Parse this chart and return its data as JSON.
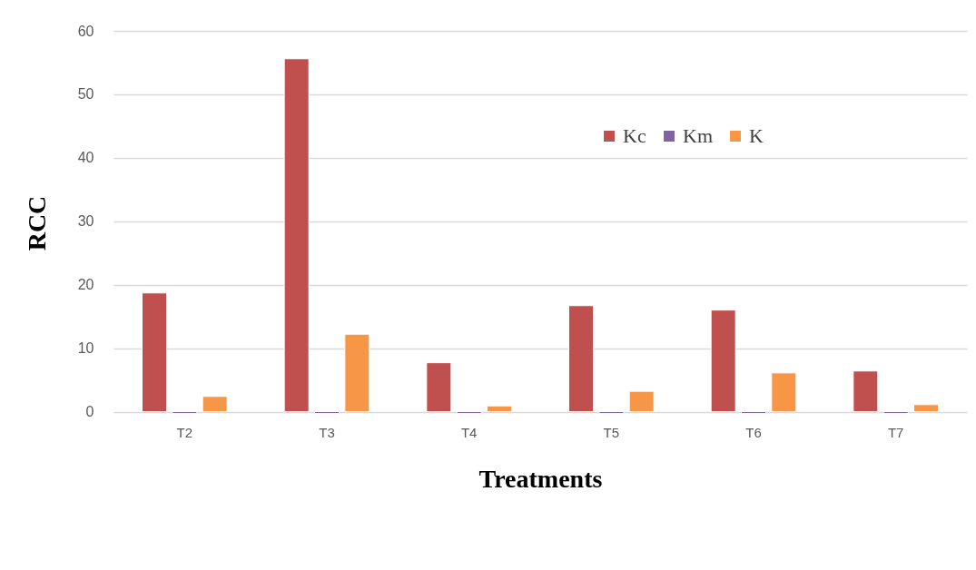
{
  "chart_data": {
    "type": "bar",
    "xlabel": "Treatments",
    "ylabel": "RCC",
    "categories": [
      "T2",
      "T3",
      "T4",
      "T5",
      "T6",
      "T7"
    ],
    "series": [
      {
        "name": "Kc",
        "color": "#c0504d",
        "values": [
          18.7,
          55.6,
          7.7,
          16.7,
          16.0,
          6.4
        ]
      },
      {
        "name": "Km",
        "color": "#8064a2",
        "values": [
          -0.3,
          -0.3,
          -0.3,
          -0.3,
          -0.3,
          -0.3
        ]
      },
      {
        "name": "K",
        "color": "#f79646",
        "values": [
          2.4,
          12.2,
          0.9,
          3.2,
          6.1,
          1.1
        ]
      }
    ],
    "ylim": [
      -0.5,
      60
    ],
    "yticks": [
      0,
      10,
      20,
      30,
      40,
      50,
      60
    ],
    "grid": "y",
    "legend": "top right"
  }
}
